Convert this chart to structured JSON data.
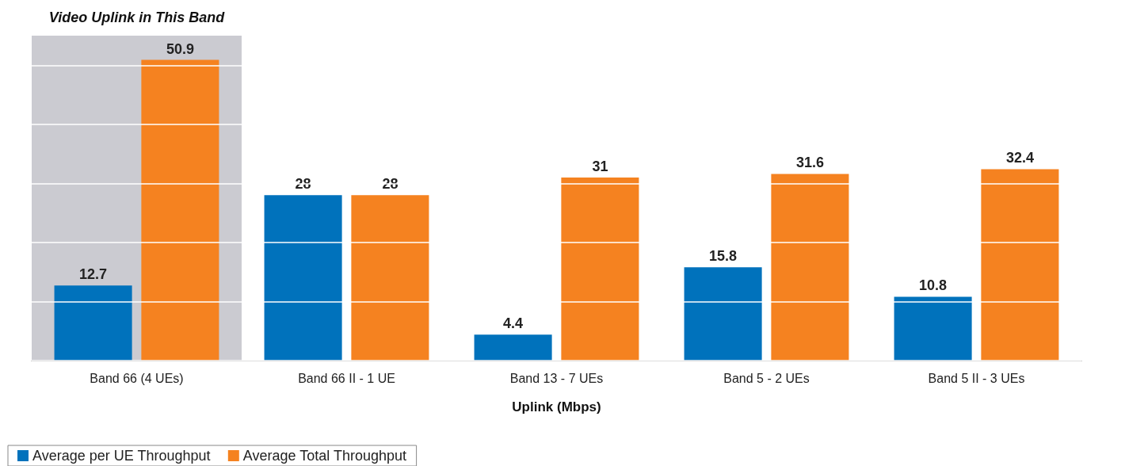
{
  "chart_data": {
    "type": "bar",
    "xlabel": "Uplink (Mbps)",
    "categories": [
      "Band 66 (4 UEs)",
      "Band 66 II - 1 UE",
      "Band 13 - 7 UEs",
      "Band 5 - 2 UEs",
      "Band 5 II - 3 UEs"
    ],
    "series": [
      {
        "name": "Average per UE Throughput",
        "color": "#0072bc",
        "values": [
          12.7,
          28,
          4.4,
          15.8,
          10.8
        ]
      },
      {
        "name": "Average Total Throughput",
        "color": "#f58220",
        "values": [
          50.9,
          28,
          31,
          31.6,
          32.4
        ]
      }
    ],
    "ylim": [
      0,
      55
    ],
    "yticks": [
      {
        "value": 0,
        "label": null
      },
      {
        "value": 10,
        "label": null
      },
      {
        "value": 20,
        "label": null
      },
      {
        "value": 30,
        "label": null
      },
      {
        "value": 40,
        "label": null
      },
      {
        "value": 50,
        "label": null
      }
    ],
    "tick_labels": "x",
    "grid": "y",
    "data_labels": true,
    "legend": "bottom left",
    "bands": [
      {
        "axis": "x",
        "from": "Band 66 (4 UEs)",
        "to": "Band 66 (4 UEs)",
        "label": "Video Uplink in This Band",
        "color": "#cbcbd1"
      }
    ]
  }
}
